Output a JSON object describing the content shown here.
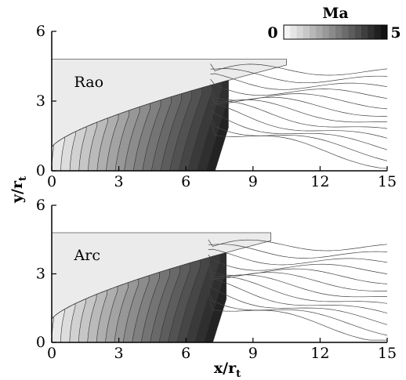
{
  "chart_data": {
    "type": "heatmap",
    "colorbar": {
      "label": "Ma",
      "min_label": "0",
      "max_label": "5",
      "min": 0,
      "max": 5,
      "color_low": "#f4f4f4",
      "color_high": "#111111",
      "levels": 16
    },
    "shared": {
      "xlabel": "x/r",
      "xlabel_sub": "t",
      "ylabel": "y/r",
      "ylabel_sub": "t",
      "xlim": [
        0,
        15
      ],
      "ylim": [
        0,
        6
      ],
      "xticks": [
        0,
        3,
        6,
        9,
        12,
        15
      ],
      "yticks": [
        0,
        3,
        6
      ]
    },
    "panels": [
      {
        "label": "Rao",
        "nozzle_exit_x": 10.5,
        "nozzle_exit_y": 4.55,
        "wall_box_top": 4.8,
        "wall_box_right": 10.5,
        "throat_radius": 1.0,
        "mach_disk_x": 7.3,
        "contour_lines": 18
      },
      {
        "label": "Arc",
        "nozzle_exit_x": 9.8,
        "nozzle_exit_y": 4.45,
        "wall_box_top": 4.8,
        "wall_box_right": 9.8,
        "throat_radius": 1.0,
        "mach_disk_x": 7.2,
        "contour_lines": 18
      }
    ]
  }
}
